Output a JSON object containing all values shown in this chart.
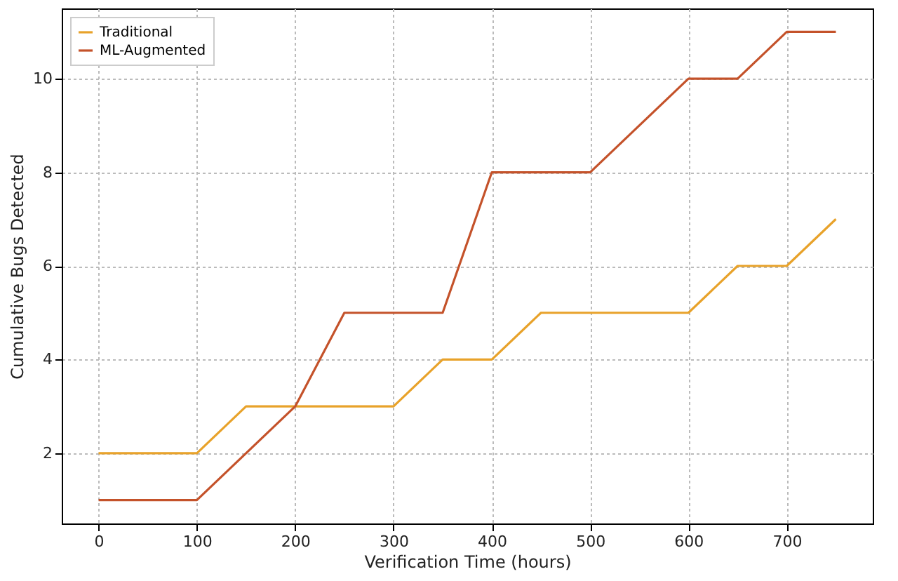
{
  "chart_data": {
    "type": "line",
    "xlabel": "Verification Time (hours)",
    "ylabel": "Cumulative Bugs Detected",
    "x": [
      0,
      50,
      100,
      150,
      200,
      250,
      300,
      350,
      400,
      450,
      500,
      550,
      600,
      650,
      700,
      750
    ],
    "series": [
      {
        "name": "Traditional",
        "color": "#e8a22a",
        "values": [
          2,
          2,
          2,
          3,
          3,
          3,
          3,
          4,
          4,
          5,
          5,
          5,
          5,
          6,
          6,
          7
        ]
      },
      {
        "name": "ML-Augmented",
        "color": "#c4522a",
        "values": [
          1,
          1,
          1,
          2,
          3,
          5,
          5,
          5,
          8,
          8,
          8,
          9,
          10,
          10,
          11,
          11
        ]
      }
    ],
    "xlim": [
      -37.5,
      787.5
    ],
    "xticks": [
      0,
      100,
      200,
      300,
      400,
      500,
      600,
      700
    ],
    "ylim": [
      0.5,
      11.5
    ],
    "yticks": [
      2,
      4,
      6,
      8,
      10
    ],
    "grid": true,
    "legend": "top left",
    "marker": "none",
    "line_style": "solid"
  }
}
